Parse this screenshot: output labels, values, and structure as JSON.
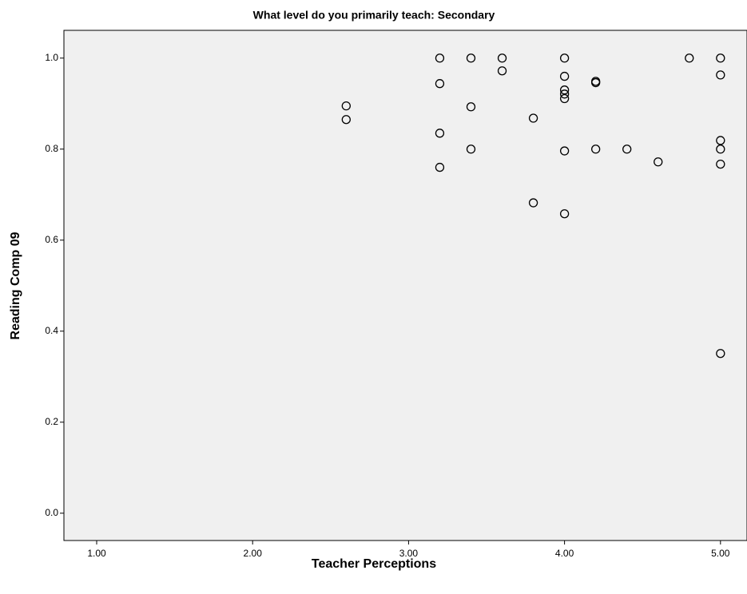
{
  "chart_data": {
    "type": "scatter",
    "title": "What level do you primarily teach: Secondary",
    "x_label": "Teacher Perceptions",
    "y_label": "Reading Comp 09",
    "x": [
      2.6,
      2.6,
      3.2,
      3.2,
      3.2,
      3.2,
      3.4,
      3.4,
      3.4,
      3.6,
      3.6,
      3.8,
      3.8,
      4.0,
      4.0,
      4.0,
      4.0,
      4.0,
      4.0,
      4.0,
      4.2,
      4.2,
      4.2,
      4.4,
      4.6,
      4.8,
      5.0,
      5.0,
      5.0,
      5.0,
      5.0,
      5.0
    ],
    "values": [
      0.895,
      0.865,
      1.0,
      0.944,
      0.835,
      0.76,
      1.0,
      0.893,
      0.8,
      1.0,
      0.972,
      0.868,
      0.682,
      1.0,
      0.96,
      0.93,
      0.921,
      0.911,
      0.796,
      0.658,
      0.949,
      0.946,
      0.8,
      0.8,
      0.772,
      1.0,
      1.0,
      0.963,
      0.819,
      0.8,
      0.767,
      0.351
    ],
    "color": "#000000",
    "xlim": [
      0.79,
      5.17
    ],
    "ylim": [
      -0.06,
      1.061
    ],
    "xticks": [
      {
        "value": 1,
        "label": "1.00"
      },
      {
        "value": 2,
        "label": "2.00"
      },
      {
        "value": 3,
        "label": "3.00"
      },
      {
        "value": 4,
        "label": "4.00"
      },
      {
        "value": 5,
        "label": "5.00"
      }
    ],
    "yticks": [
      {
        "value": 0,
        "label": "0.0"
      },
      0.2,
      0.4,
      0.6,
      0.8,
      {
        "value": 1,
        "label": "1.0"
      }
    ]
  }
}
